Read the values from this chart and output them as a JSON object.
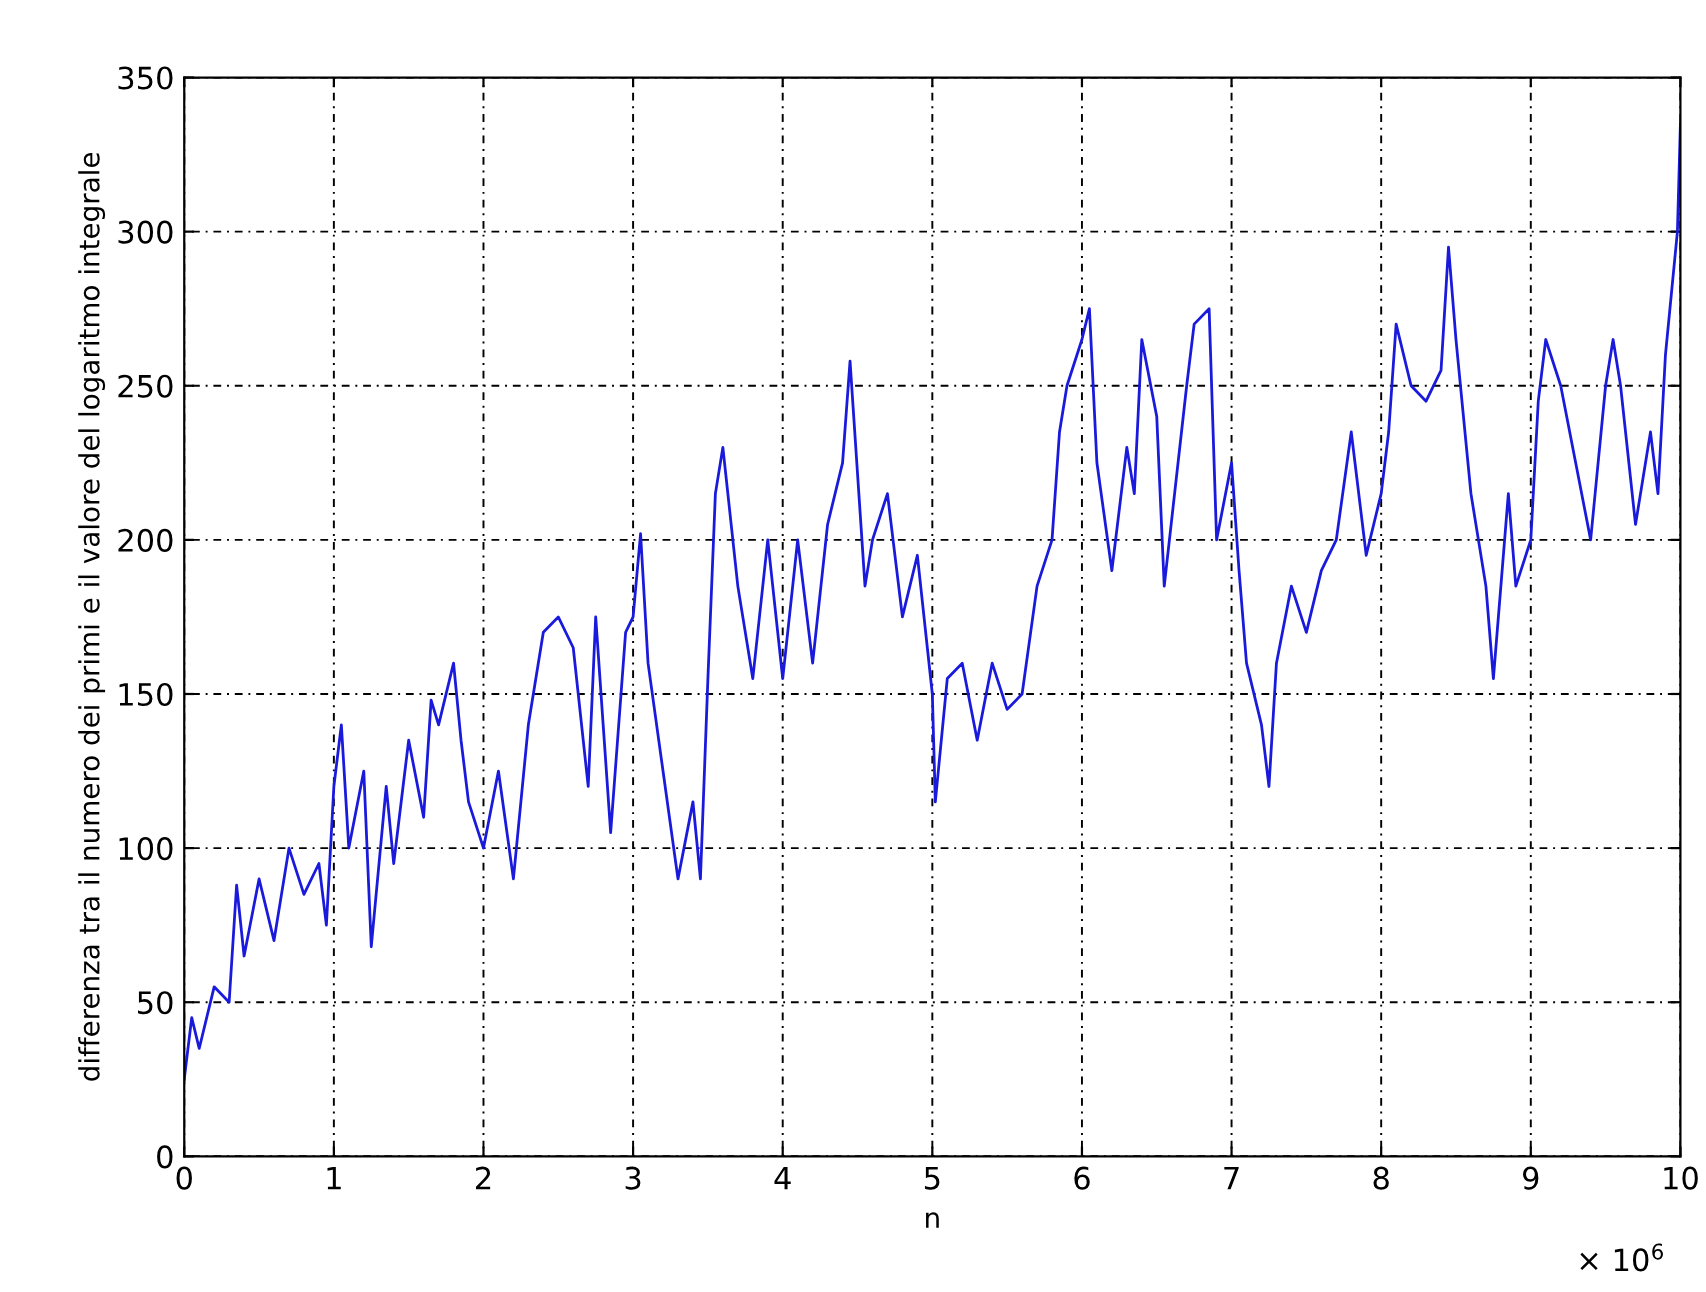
{
  "chart_data": {
    "type": "line",
    "xlabel": "n",
    "ylabel": "differenza tra il numero dei primi e il valore del logaritmo integrale",
    "annotations": [
      "× 10$^{6}$"
    ],
    "x": [
      0,
      0.05,
      0.1,
      0.2,
      0.3,
      0.35,
      0.4,
      0.5,
      0.6,
      0.7,
      0.8,
      0.9,
      0.95,
      1.0,
      1.05,
      1.1,
      1.2,
      1.25,
      1.35,
      1.4,
      1.5,
      1.6,
      1.65,
      1.7,
      1.8,
      1.85,
      1.9,
      2.0,
      2.1,
      2.2,
      2.3,
      2.4,
      2.5,
      2.6,
      2.7,
      2.75,
      2.8,
      2.85,
      2.95,
      3.0,
      3.05,
      3.1,
      3.2,
      3.3,
      3.4,
      3.45,
      3.5,
      3.55,
      3.6,
      3.7,
      3.8,
      3.9,
      4.0,
      4.1,
      4.2,
      4.3,
      4.4,
      4.45,
      4.55,
      4.6,
      4.7,
      4.8,
      4.9,
      5.0,
      5.02,
      5.1,
      5.2,
      5.3,
      5.4,
      5.5,
      5.6,
      5.7,
      5.8,
      5.85,
      5.9,
      6.0,
      6.05,
      6.1,
      6.2,
      6.3,
      6.35,
      6.4,
      6.5,
      6.55,
      6.7,
      6.75,
      6.85,
      6.9,
      7.0,
      7.05,
      7.1,
      7.2,
      7.25,
      7.3,
      7.4,
      7.5,
      7.6,
      7.7,
      7.8,
      7.9,
      8.0,
      8.05,
      8.1,
      8.2,
      8.3,
      8.4,
      8.45,
      8.5,
      8.6,
      8.7,
      8.75,
      8.85,
      8.9,
      9.0,
      9.05,
      9.1,
      9.2,
      9.3,
      9.4,
      9.5,
      9.55,
      9.6,
      9.7,
      9.8,
      9.85,
      9.9,
      9.98,
      10.0
    ],
    "series": [
      {
        "color": "#1a1adc",
        "values": [
          25,
          45,
          35,
          55,
          50,
          88,
          65,
          90,
          70,
          100,
          85,
          95,
          75,
          120,
          140,
          100,
          125,
          68,
          120,
          95,
          135,
          110,
          148,
          140,
          160,
          135,
          115,
          100,
          125,
          90,
          140,
          170,
          175,
          165,
          120,
          175,
          140,
          105,
          170,
          175,
          202,
          160,
          125,
          90,
          115,
          90,
          155,
          215,
          230,
          185,
          155,
          200,
          155,
          200,
          160,
          205,
          225,
          258,
          185,
          200,
          215,
          175,
          195,
          150,
          115,
          155,
          160,
          135,
          160,
          145,
          150,
          185,
          200,
          235,
          250,
          265,
          275,
          225,
          190,
          230,
          215,
          265,
          240,
          185,
          250,
          270,
          275,
          200,
          225,
          190,
          160,
          140,
          120,
          160,
          185,
          170,
          190,
          200,
          235,
          195,
          215,
          235,
          270,
          250,
          245,
          255,
          295,
          265,
          215,
          185,
          155,
          215,
          185,
          200,
          245,
          265,
          250,
          225,
          200,
          250,
          265,
          250,
          205,
          235,
          215,
          260,
          300,
          335
        ]
      }
    ],
    "xlim": [
      0,
      10
    ],
    "xticks": [
      0,
      1,
      2,
      3,
      4,
      5,
      6,
      7,
      8,
      9,
      10
    ],
    "ylim": [
      0,
      350
    ],
    "yticks": [
      0,
      50,
      100,
      150,
      200,
      250,
      300,
      350
    ],
    "grid": true,
    "line_style": "solid"
  }
}
